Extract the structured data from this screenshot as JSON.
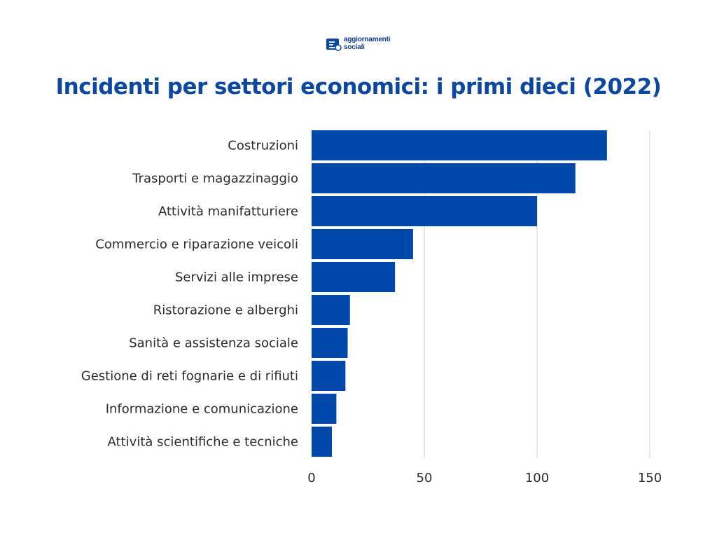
{
  "logo": {
    "line1": "aggiornamenti",
    "line2": "sociali"
  },
  "title": "Incidenti per settori economici: i primi dieci (2022)",
  "colors": {
    "bar": "#0047ab",
    "title": "#0d48a0",
    "grid": "#d9d9d9",
    "text": "#2b2b2b"
  },
  "chart_data": {
    "type": "bar",
    "orientation": "horizontal",
    "title": "Incidenti per settori economici: i primi dieci (2022)",
    "xlabel": "",
    "ylabel": "",
    "categories": [
      "Costruzioni",
      "Trasporti e magazzinaggio",
      "Attività manifatturiere",
      "Commercio e riparazione veicoli",
      "Servizi alle imprese",
      "Ristorazione e alberghi",
      "Sanità e assistenza sociale",
      "Gestione di reti fognarie e di rifiuti",
      "Informazione e comunicazione",
      "Attività scientifiche e tecniche"
    ],
    "values": [
      131,
      117,
      100,
      45,
      37,
      17,
      16,
      15,
      11,
      9
    ],
    "xlim": [
      0,
      150
    ],
    "xticks": [
      0,
      50,
      100,
      150
    ],
    "grid": true,
    "legend": "none"
  }
}
